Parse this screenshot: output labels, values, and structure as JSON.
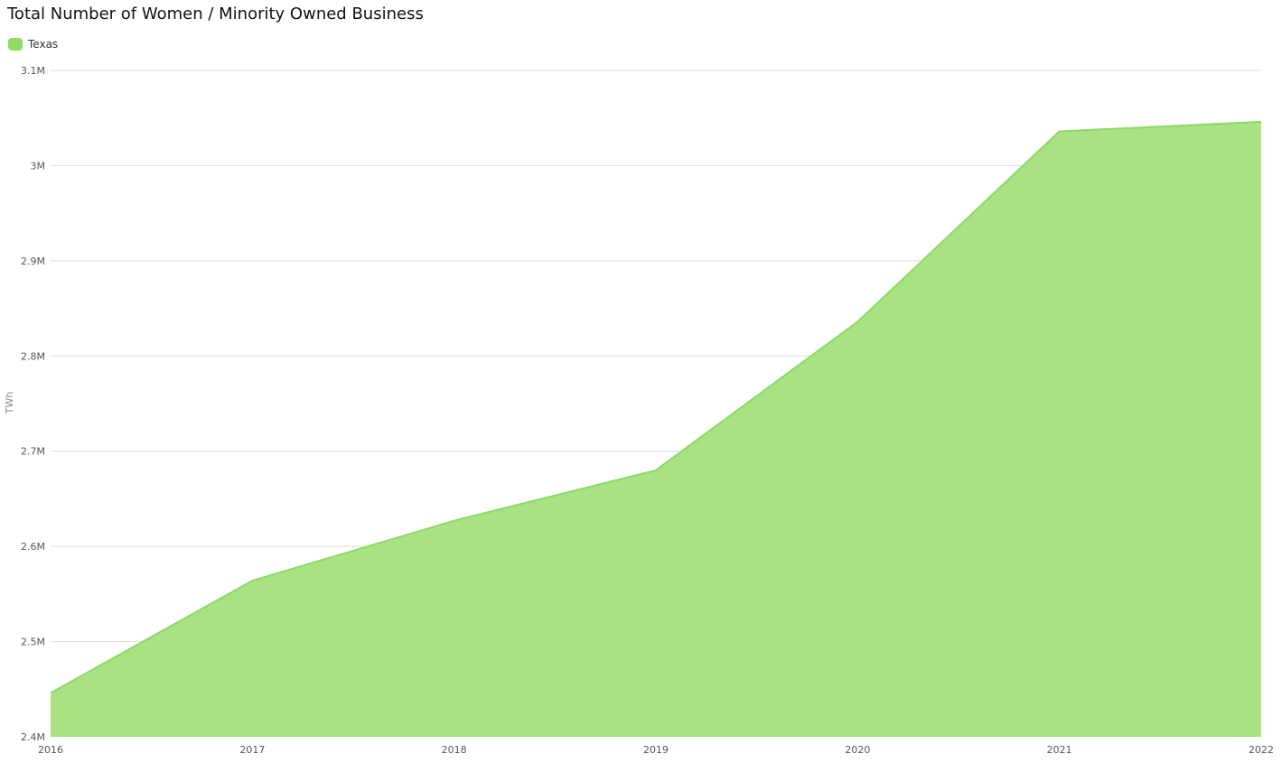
{
  "chart_data": {
    "type": "area",
    "title": "Total Number of Women / Minority Owned Business",
    "xlabel": "",
    "ylabel": "TWh",
    "x": [
      "2016",
      "2017",
      "2018",
      "2019",
      "2020",
      "2021",
      "2022"
    ],
    "series": [
      {
        "name": "Texas",
        "values": [
          2446000,
          2564000,
          2627000,
          2680000,
          2836000,
          3036000,
          3046000
        ],
        "color": "#a8e283",
        "line_color": "#8cd967"
      }
    ],
    "ylim": [
      2400000,
      3100000
    ],
    "yticks": [
      {
        "value": 2400000,
        "label": "2.4M"
      },
      {
        "value": 2500000,
        "label": "2.5M"
      },
      {
        "value": 2600000,
        "label": "2.6M"
      },
      {
        "value": 2700000,
        "label": "2.7M"
      },
      {
        "value": 2800000,
        "label": "2.8M"
      },
      {
        "value": 2900000,
        "label": "2.9M"
      },
      {
        "value": 3000000,
        "label": "3M"
      },
      {
        "value": 3100000,
        "label": "3.1M"
      }
    ],
    "grid": true,
    "grid_color": "#dddddd",
    "legend_position": "top-left",
    "legend_swatch_color": "#8edc63"
  }
}
